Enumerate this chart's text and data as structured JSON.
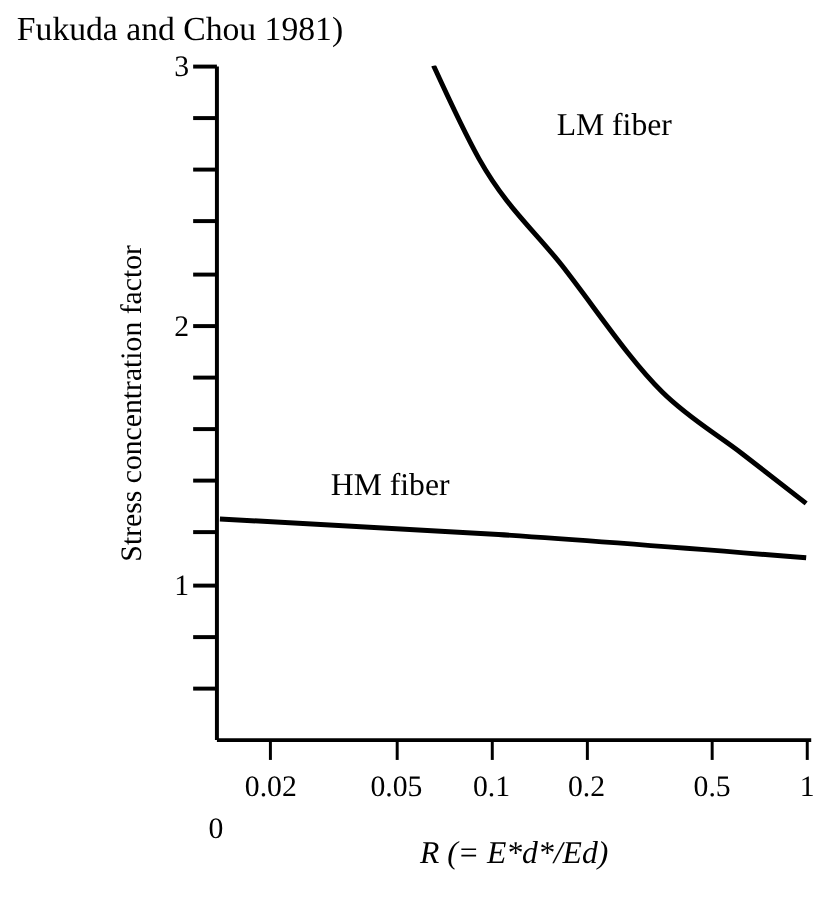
{
  "chart_data": {
    "type": "line",
    "xlabel": "R (= E*d*/Ed)",
    "ylabel": "Stress concentration factor",
    "log": "x",
    "xlim": [
      0.0135,
      1.03
    ],
    "xticks": [
      0.02,
      0.05,
      0.1,
      0.2,
      0.5,
      1
    ],
    "ylim": [
      0.4,
      3
    ],
    "yticks": [
      {
        "value": 0.6,
        "label": null
      },
      {
        "value": 0.8,
        "label": null
      },
      1,
      {
        "value": 1.2,
        "label": null
      },
      {
        "value": 1.4,
        "label": null
      },
      {
        "value": 1.6,
        "label": null
      },
      {
        "value": 1.8,
        "label": null
      },
      2,
      {
        "value": 2.2,
        "label": null
      },
      {
        "value": 2.4,
        "label": null
      },
      {
        "value": 2.6,
        "label": null
      },
      {
        "value": 2.8,
        "label": null
      },
      3
    ],
    "grid": false,
    "marker": "none",
    "line_style": "solid",
    "series": [
      {
        "color": "#000000",
        "x": [
          0.066,
          0.092,
          0.168,
          0.35,
          0.63,
          1.0
        ],
        "values": [
          3.0,
          2.64,
          2.23,
          1.74,
          1.5,
          1.31
        ]
      },
      {
        "color": "#000000",
        "x": [
          0.0139,
          0.106,
          1.0
        ],
        "values": [
          1.25,
          1.19,
          1.1
        ]
      }
    ],
    "annotations": [
      "Fukuda and Chou 1981)",
      "0",
      "LM fiber",
      "HM fiber"
    ]
  }
}
